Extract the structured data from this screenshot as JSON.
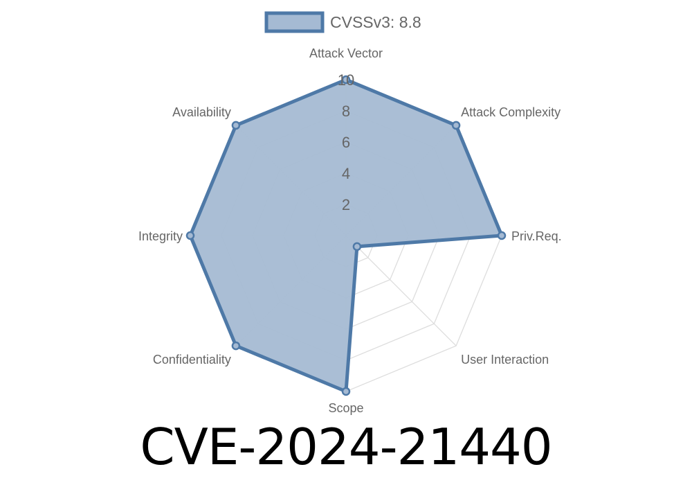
{
  "chart_data": {
    "type": "radar",
    "axes": [
      "Attack Vector",
      "Attack Complexity",
      "Priv.Req.",
      "User Interaction",
      "Scope",
      "Confidentiality",
      "Integrity",
      "Availability"
    ],
    "series": [
      {
        "name": "CVSSv3: 8.8",
        "values": [
          10,
          10,
          10,
          1,
          10,
          10,
          10,
          10
        ]
      }
    ],
    "rlim": [
      0,
      10
    ],
    "ticks": [
      "2",
      "4",
      "6",
      "8",
      "10"
    ],
    "grid": true,
    "legend_position": "top",
    "colors": {
      "line": "#4e79a7",
      "fill": "#a5bad3",
      "grid": "#dddddd"
    }
  },
  "title": "CVE-2024-21440"
}
